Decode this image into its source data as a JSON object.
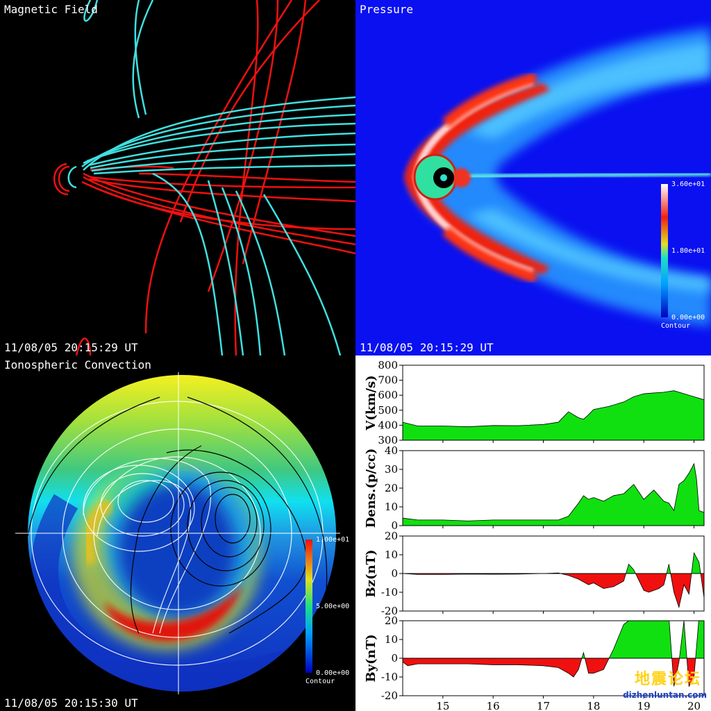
{
  "panels": {
    "magnetic": {
      "title": "Magnetic Field",
      "timestamp": "11/08/05 20:15:29 UT"
    },
    "pressure": {
      "title": "Pressure",
      "timestamp": "11/08/05 20:15:29 UT",
      "colorbar": {
        "max": "3.60e+01",
        "mid": "1.80e+01",
        "min": "0.00e+00",
        "caption": "Contour"
      }
    },
    "ionosphere": {
      "title": "Ionospheric Convection",
      "timestamp": "11/08/05 20:15:30 UT",
      "colorbar": {
        "max": "1.00e+01",
        "mid": "5.00e+00",
        "min": "0.00e+00",
        "caption": "Contour"
      }
    }
  },
  "chart_data": [
    {
      "type": "area",
      "ylabel": "V(km/s)",
      "ylim": [
        300,
        800
      ],
      "yticks": [
        300,
        400,
        500,
        600,
        700,
        800
      ],
      "x": [
        14.2,
        14.5,
        15,
        15.5,
        16,
        16.5,
        17,
        17.3,
        17.5,
        17.7,
        17.8,
        17.9,
        18,
        18.3,
        18.6,
        18.8,
        19,
        19.2,
        19.4,
        19.6,
        19.8,
        20,
        20.2
      ],
      "y": [
        420,
        395,
        395,
        390,
        398,
        397,
        405,
        420,
        490,
        450,
        440,
        470,
        505,
        525,
        555,
        590,
        610,
        615,
        620,
        630,
        610,
        590,
        570
      ]
    },
    {
      "type": "area",
      "ylabel": "Dens.(p/cc)",
      "ylim": [
        0,
        40
      ],
      "yticks": [
        0,
        10,
        20,
        30,
        40
      ],
      "x": [
        14.2,
        14.5,
        15,
        15.5,
        16,
        16.5,
        17,
        17.3,
        17.5,
        17.7,
        17.8,
        17.9,
        18,
        18.2,
        18.4,
        18.6,
        18.8,
        19,
        19.2,
        19.4,
        19.5,
        19.6,
        19.7,
        19.8,
        19.9,
        20,
        20.05,
        20.1,
        20.2
      ],
      "y": [
        4,
        3,
        3,
        2.5,
        3,
        3,
        3,
        3,
        5,
        12,
        16,
        14,
        15,
        13,
        16,
        17,
        22,
        14,
        19,
        13,
        12,
        8,
        22,
        24,
        28,
        33,
        25,
        8,
        7
      ]
    },
    {
      "type": "area",
      "ylabel": "Bz(nT)",
      "ylim": [
        -20,
        20
      ],
      "yticks": [
        -20,
        -10,
        0,
        10,
        20
      ],
      "x": [
        14.2,
        14.5,
        15,
        15.5,
        16,
        16.5,
        17,
        17.3,
        17.5,
        17.7,
        17.9,
        18,
        18.2,
        18.4,
        18.6,
        18.7,
        18.8,
        19,
        19.1,
        19.3,
        19.4,
        19.5,
        19.6,
        19.7,
        19.8,
        19.9,
        20,
        20.1,
        20.2
      ],
      "y": [
        0,
        -0.5,
        -0.5,
        -0.3,
        -0.4,
        -0.3,
        0,
        0.3,
        -1,
        -3,
        -6,
        -5,
        -8,
        -7,
        -4,
        5,
        2,
        -9,
        -10,
        -8,
        -6,
        5,
        -10,
        -18,
        -6,
        -11,
        11,
        6,
        -13
      ]
    },
    {
      "type": "area",
      "ylabel": "By(nT)",
      "ylim": [
        -20,
        20
      ],
      "yticks": [
        -20,
        -10,
        0,
        10,
        20
      ],
      "xticks": [
        15,
        16,
        17,
        18,
        19,
        20
      ],
      "x": [
        14.2,
        14.3,
        14.5,
        15,
        15.5,
        16,
        16.5,
        17,
        17.3,
        17.5,
        17.6,
        17.7,
        17.8,
        17.9,
        18,
        18.2,
        18.4,
        18.6,
        18.8,
        19,
        19.2,
        19.4,
        19.5,
        19.6,
        19.7,
        19.8,
        19.9,
        20,
        20.1,
        20.2
      ],
      "y": [
        -2,
        -4,
        -3,
        -3,
        -3,
        -3.5,
        -3.5,
        -4,
        -5,
        -8,
        -10,
        -6,
        3,
        -8,
        -8,
        -6,
        5,
        18,
        22,
        22,
        22,
        22,
        22,
        -15,
        -2,
        20,
        -15,
        -10,
        22,
        22
      ]
    }
  ],
  "watermark": {
    "cn": "地震论坛",
    "url": "dizhenluntan.com"
  }
}
